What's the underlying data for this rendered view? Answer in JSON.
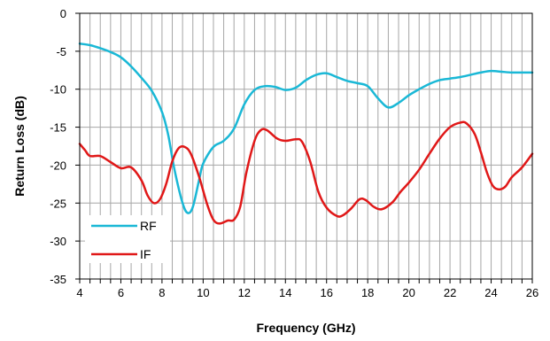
{
  "chart_data": {
    "type": "line",
    "xlabel": "Frequency (GHz)",
    "ylabel": "Return Loss (dB)",
    "xlim": [
      4,
      26
    ],
    "ylim": [
      -35,
      0
    ],
    "xticks": [
      4,
      6,
      8,
      10,
      12,
      14,
      16,
      18,
      20,
      22,
      24,
      26
    ],
    "yticks": [
      0,
      -5,
      -10,
      -15,
      -20,
      -25,
      -30,
      -35
    ],
    "x_minor_step": 0.5,
    "grid": true,
    "legend_position": "bottom-left",
    "series": [
      {
        "name": "RF",
        "color": "#1ab8d6",
        "points": [
          [
            4.0,
            -4.0
          ],
          [
            4.5,
            -4.2
          ],
          [
            5.0,
            -4.6
          ],
          [
            5.5,
            -5.1
          ],
          [
            6.0,
            -5.8
          ],
          [
            6.5,
            -7.0
          ],
          [
            7.0,
            -8.5
          ],
          [
            7.5,
            -10.2
          ],
          [
            8.0,
            -13.0
          ],
          [
            8.3,
            -16.0
          ],
          [
            8.6,
            -20.5
          ],
          [
            9.0,
            -25.0
          ],
          [
            9.25,
            -26.3
          ],
          [
            9.5,
            -25.5
          ],
          [
            9.8,
            -22.0
          ],
          [
            10.0,
            -19.8
          ],
          [
            10.5,
            -17.6
          ],
          [
            11.0,
            -16.8
          ],
          [
            11.5,
            -15.2
          ],
          [
            12.0,
            -12.0
          ],
          [
            12.5,
            -10.1
          ],
          [
            13.0,
            -9.6
          ],
          [
            13.5,
            -9.7
          ],
          [
            14.0,
            -10.1
          ],
          [
            14.5,
            -9.8
          ],
          [
            15.0,
            -8.8
          ],
          [
            15.5,
            -8.1
          ],
          [
            16.0,
            -7.9
          ],
          [
            16.5,
            -8.4
          ],
          [
            17.0,
            -8.9
          ],
          [
            17.5,
            -9.2
          ],
          [
            18.0,
            -9.6
          ],
          [
            18.5,
            -11.2
          ],
          [
            19.0,
            -12.4
          ],
          [
            19.5,
            -11.8
          ],
          [
            20.0,
            -10.8
          ],
          [
            20.5,
            -10.0
          ],
          [
            21.0,
            -9.3
          ],
          [
            21.5,
            -8.8
          ],
          [
            22.0,
            -8.6
          ],
          [
            22.5,
            -8.4
          ],
          [
            23.0,
            -8.1
          ],
          [
            23.5,
            -7.8
          ],
          [
            24.0,
            -7.6
          ],
          [
            24.5,
            -7.7
          ],
          [
            25.0,
            -7.8
          ],
          [
            25.5,
            -7.8
          ],
          [
            26.0,
            -7.8
          ]
        ]
      },
      {
        "name": "IF",
        "color": "#e01818",
        "points": [
          [
            4.0,
            -17.2
          ],
          [
            4.25,
            -18.0
          ],
          [
            4.5,
            -18.8
          ],
          [
            5.0,
            -18.8
          ],
          [
            5.5,
            -19.6
          ],
          [
            6.0,
            -20.4
          ],
          [
            6.5,
            -20.3
          ],
          [
            7.0,
            -22.0
          ],
          [
            7.3,
            -24.0
          ],
          [
            7.6,
            -25.0
          ],
          [
            7.9,
            -24.5
          ],
          [
            8.2,
            -22.5
          ],
          [
            8.5,
            -19.5
          ],
          [
            8.8,
            -17.8
          ],
          [
            9.1,
            -17.6
          ],
          [
            9.4,
            -18.5
          ],
          [
            9.8,
            -21.5
          ],
          [
            10.2,
            -25.2
          ],
          [
            10.5,
            -27.2
          ],
          [
            10.8,
            -27.7
          ],
          [
            11.2,
            -27.3
          ],
          [
            11.5,
            -27.2
          ],
          [
            11.8,
            -25.5
          ],
          [
            12.1,
            -21.0
          ],
          [
            12.5,
            -16.8
          ],
          [
            12.8,
            -15.4
          ],
          [
            13.1,
            -15.4
          ],
          [
            13.6,
            -16.5
          ],
          [
            14.0,
            -16.8
          ],
          [
            14.5,
            -16.6
          ],
          [
            14.8,
            -16.9
          ],
          [
            15.2,
            -19.5
          ],
          [
            15.6,
            -23.5
          ],
          [
            16.0,
            -25.6
          ],
          [
            16.5,
            -26.7
          ],
          [
            16.8,
            -26.6
          ],
          [
            17.2,
            -25.7
          ],
          [
            17.6,
            -24.5
          ],
          [
            17.9,
            -24.6
          ],
          [
            18.3,
            -25.5
          ],
          [
            18.7,
            -25.8
          ],
          [
            19.2,
            -24.9
          ],
          [
            19.6,
            -23.5
          ],
          [
            20.0,
            -22.3
          ],
          [
            20.5,
            -20.6
          ],
          [
            21.0,
            -18.5
          ],
          [
            21.5,
            -16.5
          ],
          [
            22.0,
            -15.0
          ],
          [
            22.5,
            -14.4
          ],
          [
            22.8,
            -14.5
          ],
          [
            23.2,
            -15.9
          ],
          [
            23.5,
            -18.3
          ],
          [
            23.8,
            -21.0
          ],
          [
            24.1,
            -22.8
          ],
          [
            24.4,
            -23.2
          ],
          [
            24.7,
            -22.8
          ],
          [
            25.0,
            -21.6
          ],
          [
            25.5,
            -20.3
          ],
          [
            26.0,
            -18.5
          ]
        ]
      }
    ]
  }
}
